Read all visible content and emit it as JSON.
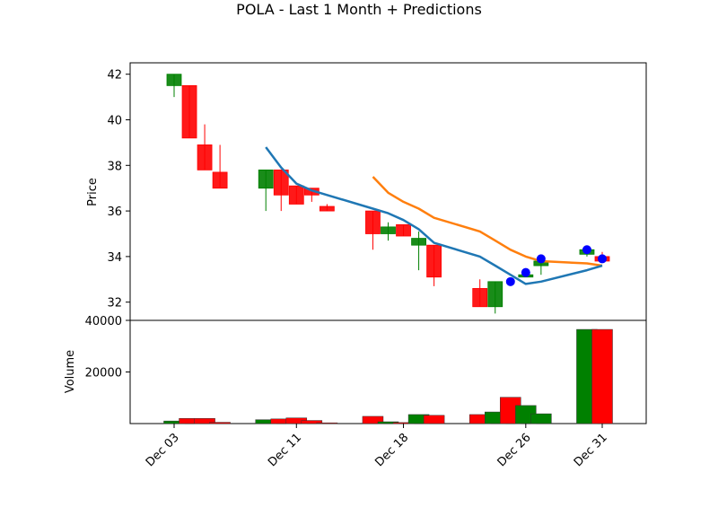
{
  "chart_data": {
    "type": "candlestick",
    "title": "POLA - Last 1 Month + Predictions",
    "price_panel": {
      "ylabel": "Price",
      "yticks": [
        32,
        34,
        36,
        38,
        40,
        42
      ],
      "ylim": [
        31.2,
        42.5
      ],
      "candles": [
        {
          "day": 3,
          "open": 41.5,
          "close": 42.0,
          "high": 42.0,
          "low": 41.0
        },
        {
          "day": 4,
          "open": 41.5,
          "close": 39.2,
          "high": 41.5,
          "low": 39.2
        },
        {
          "day": 5,
          "open": 38.9,
          "close": 37.8,
          "high": 39.8,
          "low": 37.8
        },
        {
          "day": 6,
          "open": 37.7,
          "close": 37.0,
          "high": 38.9,
          "low": 37.0
        },
        {
          "day": 9,
          "open": 37.0,
          "close": 37.8,
          "high": 37.8,
          "low": 36.0
        },
        {
          "day": 10,
          "open": 37.8,
          "close": 36.7,
          "high": 37.8,
          "low": 36.0
        },
        {
          "day": 11,
          "open": 37.1,
          "close": 36.3,
          "high": 37.1,
          "low": 36.3
        },
        {
          "day": 12,
          "open": 37.0,
          "close": 36.7,
          "high": 37.0,
          "low": 36.4
        },
        {
          "day": 13,
          "open": 36.2,
          "close": 36.0,
          "high": 36.3,
          "low": 36.0
        },
        {
          "day": 16,
          "open": 36.0,
          "close": 35.0,
          "high": 36.0,
          "low": 34.3
        },
        {
          "day": 17,
          "open": 35.0,
          "close": 35.3,
          "high": 35.5,
          "low": 34.7
        },
        {
          "day": 18,
          "open": 35.4,
          "close": 34.9,
          "high": 35.4,
          "low": 34.9
        },
        {
          "day": 19,
          "open": 34.5,
          "close": 34.8,
          "high": 35.1,
          "low": 33.4
        },
        {
          "day": 20,
          "open": 34.5,
          "close": 33.1,
          "high": 34.5,
          "low": 32.7
        },
        {
          "day": 23,
          "open": 32.6,
          "close": 31.8,
          "high": 33.0,
          "low": 31.8
        },
        {
          "day": 24,
          "open": 31.8,
          "close": 32.9,
          "high": 32.9,
          "low": 31.5
        },
        {
          "day": 26,
          "open": 33.1,
          "close": 33.2,
          "high": 33.3,
          "low": 33.1
        },
        {
          "day": 27,
          "open": 33.6,
          "close": 33.8,
          "high": 34.0,
          "low": 33.2
        },
        {
          "day": 30,
          "open": 34.1,
          "close": 34.3,
          "high": 34.4,
          "low": 34.0
        },
        {
          "day": 31,
          "open": 34.0,
          "close": 33.8,
          "high": 34.2,
          "low": 33.8
        }
      ],
      "ma_short": {
        "color": "#1f77b4",
        "points": [
          [
            9,
            38.8
          ],
          [
            10,
            37.9
          ],
          [
            11,
            37.2
          ],
          [
            12,
            36.9
          ],
          [
            13,
            36.7
          ],
          [
            16,
            36.1
          ],
          [
            17,
            35.9
          ],
          [
            18,
            35.6
          ],
          [
            19,
            35.2
          ],
          [
            20,
            34.6
          ],
          [
            23,
            34.0
          ],
          [
            24,
            33.6
          ],
          [
            25,
            33.2
          ],
          [
            26,
            32.8
          ],
          [
            27,
            32.9
          ],
          [
            30,
            33.4
          ],
          [
            31,
            33.6
          ]
        ]
      },
      "ma_long": {
        "color": "#ff7f0e",
        "points": [
          [
            16,
            37.5
          ],
          [
            17,
            36.8
          ],
          [
            18,
            36.4
          ],
          [
            19,
            36.1
          ],
          [
            20,
            35.7
          ],
          [
            23,
            35.1
          ],
          [
            24,
            34.7
          ],
          [
            25,
            34.3
          ],
          [
            26,
            34.0
          ],
          [
            27,
            33.8
          ],
          [
            30,
            33.7
          ],
          [
            31,
            33.6
          ]
        ]
      },
      "predictions": {
        "color": "#0000ff",
        "points": [
          [
            25,
            32.9
          ],
          [
            26,
            33.3
          ],
          [
            27,
            33.9
          ],
          [
            30,
            34.3
          ],
          [
            31,
            33.9
          ]
        ]
      }
    },
    "volume_panel": {
      "ylabel": "Volume",
      "yticks": [
        20000,
        40000
      ],
      "ylim": [
        0,
        40000
      ],
      "bars": [
        {
          "day": 3,
          "value": 1000,
          "color": "green"
        },
        {
          "day": 4,
          "value": 2000,
          "color": "red"
        },
        {
          "day": 5,
          "value": 2000,
          "color": "red"
        },
        {
          "day": 6,
          "value": 500,
          "color": "red"
        },
        {
          "day": 9,
          "value": 1500,
          "color": "green"
        },
        {
          "day": 10,
          "value": 1800,
          "color": "red"
        },
        {
          "day": 11,
          "value": 2200,
          "color": "red"
        },
        {
          "day": 12,
          "value": 1200,
          "color": "red"
        },
        {
          "day": 13,
          "value": 300,
          "color": "red"
        },
        {
          "day": 16,
          "value": 2800,
          "color": "red"
        },
        {
          "day": 17,
          "value": 700,
          "color": "green"
        },
        {
          "day": 18,
          "value": 400,
          "color": "red"
        },
        {
          "day": 19,
          "value": 3500,
          "color": "green"
        },
        {
          "day": 20,
          "value": 3200,
          "color": "red"
        },
        {
          "day": 23,
          "value": 3500,
          "color": "red"
        },
        {
          "day": 24,
          "value": 4500,
          "color": "green"
        },
        {
          "day": 25,
          "value": 10200,
          "color": "red"
        },
        {
          "day": 26,
          "value": 7000,
          "color": "green"
        },
        {
          "day": 27,
          "value": 3800,
          "color": "green"
        },
        {
          "day": 30,
          "value": 36500,
          "color": "green"
        },
        {
          "day": 31,
          "value": 36500,
          "color": "red"
        }
      ]
    },
    "xaxis": {
      "ticks": [
        {
          "day": 3,
          "label": "Dec 03"
        },
        {
          "day": 11,
          "label": "Dec 11"
        },
        {
          "day": 18,
          "label": "Dec 18"
        },
        {
          "day": 26,
          "label": "Dec 26"
        },
        {
          "day": 31,
          "label": "Dec 31"
        }
      ]
    }
  }
}
